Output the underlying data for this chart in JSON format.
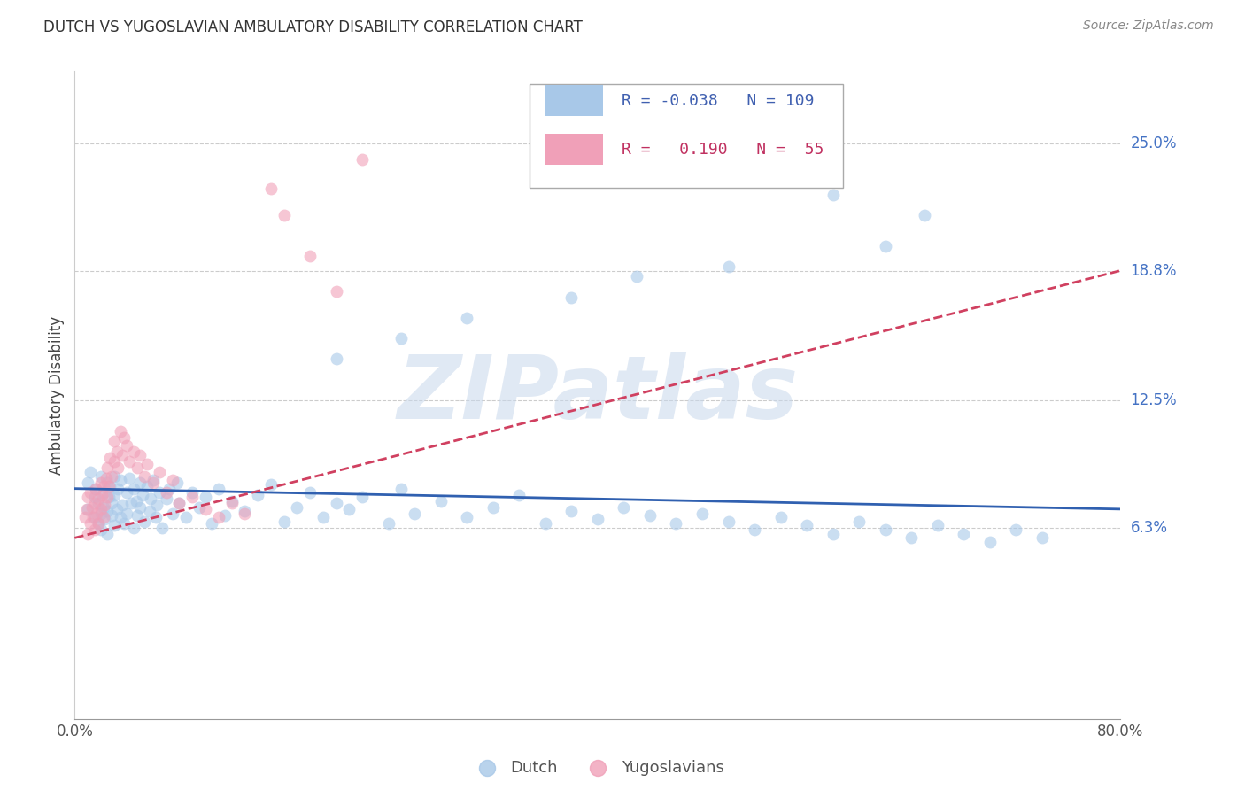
{
  "title": "DUTCH VS YUGOSLAVIAN AMBULATORY DISABILITY CORRELATION CHART",
  "source": "Source: ZipAtlas.com",
  "ylabel": "Ambulatory Disability",
  "ytick_labels": [
    "25.0%",
    "18.8%",
    "12.5%",
    "6.3%"
  ],
  "ytick_values": [
    0.25,
    0.188,
    0.125,
    0.063
  ],
  "xlim": [
    0.0,
    0.8
  ],
  "ylim": [
    -0.03,
    0.285
  ],
  "watermark": "ZIPatlas",
  "legend_dutch_R": "-0.038",
  "legend_dutch_N": "109",
  "legend_yugo_R": "0.190",
  "legend_yugo_N": "55",
  "dutch_color": "#a8c8e8",
  "yugo_color": "#f0a0b8",
  "dutch_line_color": "#3060b0",
  "yugo_line_color": "#d04060",
  "dutch_scatter_alpha": 0.6,
  "yugo_scatter_alpha": 0.6,
  "dutch_x": [
    0.01,
    0.01,
    0.012,
    0.015,
    0.015,
    0.016,
    0.018,
    0.018,
    0.02,
    0.02,
    0.02,
    0.022,
    0.022,
    0.023,
    0.025,
    0.025,
    0.025,
    0.026,
    0.027,
    0.028,
    0.028,
    0.03,
    0.03,
    0.03,
    0.032,
    0.033,
    0.035,
    0.035,
    0.036,
    0.038,
    0.04,
    0.04,
    0.042,
    0.043,
    0.045,
    0.045,
    0.047,
    0.048,
    0.05,
    0.05,
    0.052,
    0.053,
    0.055,
    0.057,
    0.058,
    0.06,
    0.062,
    0.063,
    0.065,
    0.067,
    0.07,
    0.072,
    0.075,
    0.078,
    0.08,
    0.085,
    0.09,
    0.095,
    0.1,
    0.105,
    0.11,
    0.115,
    0.12,
    0.13,
    0.14,
    0.15,
    0.16,
    0.17,
    0.18,
    0.19,
    0.2,
    0.21,
    0.22,
    0.24,
    0.25,
    0.26,
    0.28,
    0.3,
    0.32,
    0.34,
    0.36,
    0.38,
    0.4,
    0.42,
    0.44,
    0.46,
    0.48,
    0.5,
    0.52,
    0.54,
    0.56,
    0.58,
    0.6,
    0.62,
    0.64,
    0.66,
    0.68,
    0.7,
    0.72,
    0.74,
    0.58,
    0.62,
    0.65,
    0.5,
    0.43,
    0.38,
    0.3,
    0.25,
    0.2
  ],
  "dutch_y": [
    0.085,
    0.072,
    0.09,
    0.068,
    0.078,
    0.082,
    0.065,
    0.075,
    0.088,
    0.07,
    0.062,
    0.08,
    0.073,
    0.067,
    0.085,
    0.071,
    0.06,
    0.078,
    0.083,
    0.069,
    0.075,
    0.088,
    0.064,
    0.079,
    0.072,
    0.082,
    0.068,
    0.086,
    0.074,
    0.065,
    0.08,
    0.07,
    0.087,
    0.075,
    0.063,
    0.082,
    0.076,
    0.069,
    0.085,
    0.073,
    0.079,
    0.066,
    0.083,
    0.071,
    0.077,
    0.086,
    0.068,
    0.074,
    0.08,
    0.063,
    0.077,
    0.082,
    0.07,
    0.085,
    0.075,
    0.068,
    0.08,
    0.073,
    0.078,
    0.065,
    0.082,
    0.069,
    0.076,
    0.071,
    0.079,
    0.084,
    0.066,
    0.073,
    0.08,
    0.068,
    0.075,
    0.072,
    0.078,
    0.065,
    0.082,
    0.07,
    0.076,
    0.068,
    0.073,
    0.079,
    0.065,
    0.071,
    0.067,
    0.073,
    0.069,
    0.065,
    0.07,
    0.066,
    0.062,
    0.068,
    0.064,
    0.06,
    0.066,
    0.062,
    0.058,
    0.064,
    0.06,
    0.056,
    0.062,
    0.058,
    0.225,
    0.2,
    0.215,
    0.19,
    0.185,
    0.175,
    0.165,
    0.155,
    0.145
  ],
  "yugo_x": [
    0.008,
    0.009,
    0.01,
    0.01,
    0.012,
    0.012,
    0.013,
    0.014,
    0.015,
    0.015,
    0.016,
    0.017,
    0.018,
    0.018,
    0.02,
    0.02,
    0.021,
    0.022,
    0.022,
    0.023,
    0.024,
    0.025,
    0.025,
    0.026,
    0.027,
    0.028,
    0.03,
    0.03,
    0.032,
    0.033,
    0.035,
    0.036,
    0.038,
    0.04,
    0.042,
    0.045,
    0.048,
    0.05,
    0.053,
    0.055,
    0.06,
    0.065,
    0.07,
    0.075,
    0.08,
    0.09,
    0.1,
    0.11,
    0.12,
    0.13,
    0.15,
    0.16,
    0.18,
    0.2,
    0.22
  ],
  "yugo_y": [
    0.068,
    0.072,
    0.06,
    0.078,
    0.065,
    0.08,
    0.073,
    0.068,
    0.075,
    0.062,
    0.082,
    0.07,
    0.077,
    0.065,
    0.085,
    0.072,
    0.079,
    0.068,
    0.083,
    0.074,
    0.087,
    0.078,
    0.092,
    0.083,
    0.097,
    0.088,
    0.095,
    0.105,
    0.1,
    0.092,
    0.11,
    0.098,
    0.107,
    0.103,
    0.095,
    0.1,
    0.092,
    0.098,
    0.088,
    0.094,
    0.085,
    0.09,
    0.08,
    0.086,
    0.075,
    0.078,
    0.072,
    0.068,
    0.075,
    0.07,
    0.228,
    0.215,
    0.195,
    0.178,
    0.242
  ],
  "dutch_trendline_x": [
    0.0,
    0.8
  ],
  "dutch_trendline_y": [
    0.082,
    0.072
  ],
  "yugo_trendline_x": [
    0.0,
    0.8
  ],
  "yugo_trendline_y": [
    0.058,
    0.188
  ]
}
